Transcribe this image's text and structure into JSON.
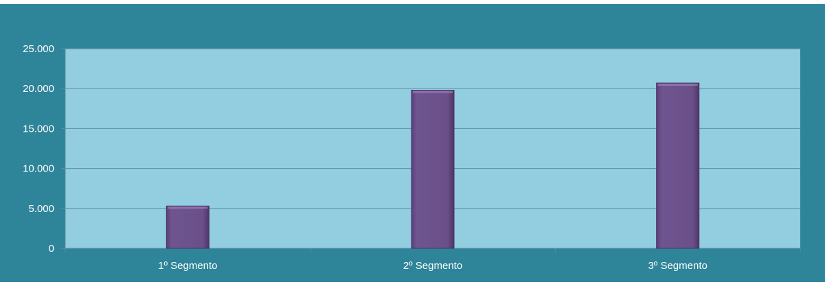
{
  "colors": {
    "frame_background": "#2e8499",
    "plot_background": "#92cde0",
    "bar_fill": "#6a4f88",
    "gridline": "#5e8fa0"
  },
  "chart_data": {
    "type": "bar",
    "title": "",
    "xlabel": "",
    "ylabel": "",
    "categories": [
      "1º Segmento",
      "2º Segmento",
      "3º Segmento"
    ],
    "values": [
      5300,
      19800,
      20700
    ],
    "ylim": [
      0,
      25000
    ],
    "yticks": [
      0,
      5000,
      10000,
      15000,
      20000,
      25000
    ],
    "ytick_labels": [
      "0",
      "5.000",
      "10.000",
      "15.000",
      "20.000",
      "25.000"
    ],
    "grid": true,
    "legend": "none"
  }
}
